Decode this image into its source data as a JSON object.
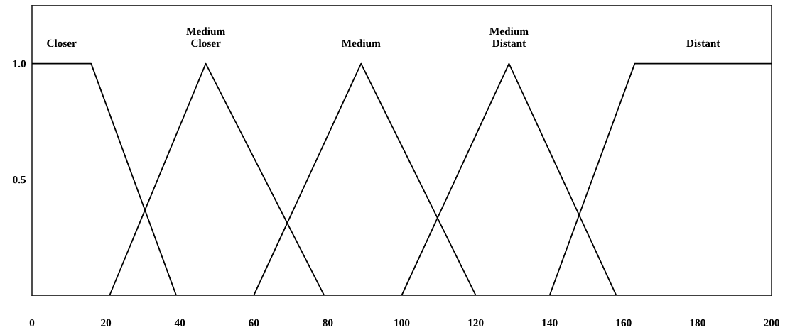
{
  "chart_data": {
    "type": "line",
    "xlim": [
      0,
      200
    ],
    "ylim": [
      0,
      1.25
    ],
    "xticks": [
      0,
      20,
      40,
      60,
      80,
      100,
      120,
      140,
      160,
      180,
      200
    ],
    "yticks": [
      {
        "value": 0.5,
        "label": "0.5"
      },
      {
        "value": 1.0,
        "label": "1.0"
      }
    ],
    "grid": false,
    "legend": false,
    "marker": "none",
    "line_style": "solid",
    "series": [
      {
        "name": "Closer",
        "color": "#000000",
        "x": [
          0,
          16,
          39
        ],
        "values": [
          1,
          1,
          0
        ]
      },
      {
        "name": "Medium Closer",
        "color": "#000000",
        "x": [
          21,
          47,
          79
        ],
        "values": [
          0,
          1,
          0
        ]
      },
      {
        "name": "Medium",
        "color": "#000000",
        "x": [
          60,
          89,
          120
        ],
        "values": [
          0,
          1,
          0
        ]
      },
      {
        "name": "Medium Distant",
        "color": "#000000",
        "x": [
          100,
          129,
          158
        ],
        "values": [
          0,
          1,
          0
        ]
      },
      {
        "name": "Distant",
        "color": "#000000",
        "x": [
          140,
          163,
          200
        ],
        "values": [
          0,
          1,
          1
        ]
      }
    ]
  }
}
